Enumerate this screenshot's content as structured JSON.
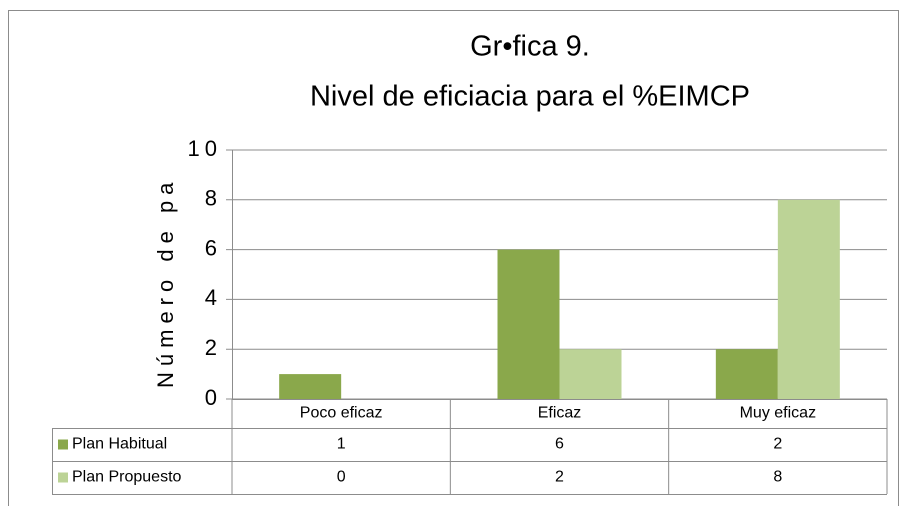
{
  "chart_data": {
    "type": "bar",
    "title": "Gr•fica 9.",
    "subtitle": "Nivel de eficiacia para el %EIMCP",
    "y_label": "Número de pa",
    "categories": [
      "Poco eficaz",
      "Eficaz",
      "Muy eficaz"
    ],
    "series": [
      {
        "name": "Plan Habitual",
        "color": "#8aa84b",
        "values": [
          1,
          6,
          2
        ]
      },
      {
        "name": "Plan Propuesto",
        "color": "#bcd396",
        "values": [
          0,
          2,
          8
        ]
      }
    ],
    "ylim": [
      0,
      10
    ],
    "yticks": [
      0,
      2,
      4,
      6,
      8,
      10
    ],
    "grid": true,
    "legend": "table"
  }
}
